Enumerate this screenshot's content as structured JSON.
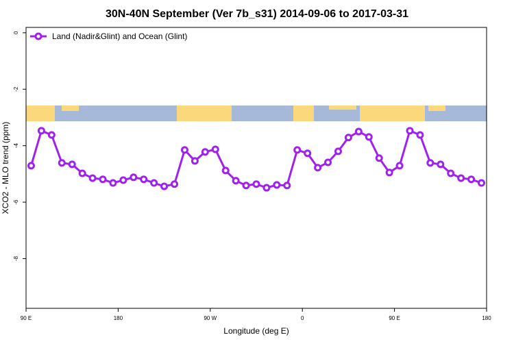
{
  "chart_data": {
    "type": "line",
    "title": "30N-40N September (Ver 7b_s31)   2014-09-06 to 2017-03-31",
    "x_label": "Longitude (deg E)",
    "y_label": "XCO2 - MLO trend (ppm)",
    "legend": "top-left",
    "x": [
      95,
      105,
      115,
      125,
      135,
      145,
      155,
      165,
      175,
      185,
      195,
      205,
      215,
      225,
      235,
      245,
      255,
      265,
      275,
      285,
      295,
      305,
      315,
      325,
      335,
      345,
      355,
      365,
      375,
      385,
      395,
      405,
      415,
      425,
      435,
      445,
      455,
      465,
      475,
      485,
      495,
      505,
      515,
      525,
      535
    ],
    "series": [
      {
        "name": "Land (Nadir&Glint) and Ocean (Glint)",
        "color": "#a020f0",
        "values": [
          -4.71,
          -3.47,
          -3.62,
          -4.61,
          -4.66,
          -4.98,
          -5.15,
          -5.19,
          -5.32,
          -5.22,
          -5.12,
          -5.19,
          -5.32,
          -5.44,
          -5.36,
          -4.15,
          -4.54,
          -4.22,
          -4.13,
          -4.88,
          -5.24,
          -5.41,
          -5.36,
          -5.49,
          -5.39,
          -5.41,
          -4.15,
          -4.27,
          -4.78,
          -4.59,
          -4.2,
          -3.71,
          -3.5,
          -3.69,
          -4.44,
          -4.95,
          -4.71,
          -3.47,
          -3.62,
          -4.61,
          -4.66,
          -4.98,
          -5.15,
          -5.19,
          -5.32
        ]
      }
    ],
    "xlim": [
      90,
      540
    ],
    "xticks": [
      {
        "value": 90,
        "label": "90 E"
      },
      180,
      {
        "value": 270,
        "label": "90 W"
      },
      {
        "value": 360,
        "label": "0"
      },
      {
        "value": 450,
        "label": "90 E"
      },
      {
        "value": 540,
        "label": "180"
      }
    ],
    "ylim": [
      -9.76,
      0.19
    ],
    "yticks": [
      0,
      -2,
      -4,
      -6,
      -8
    ]
  }
}
